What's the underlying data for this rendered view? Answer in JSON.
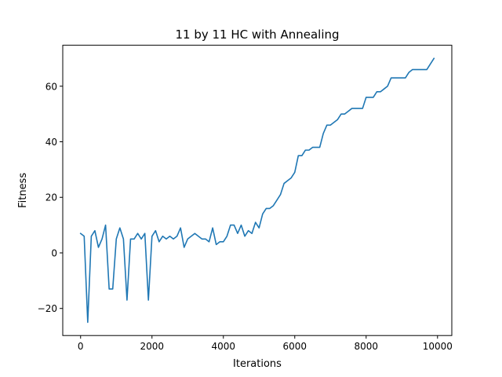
{
  "chart_data": {
    "type": "line",
    "title": "11 by 11 HC with Annealing",
    "xlabel": "Iterations",
    "ylabel": "Fitness",
    "xlim": [
      -500,
      10400
    ],
    "ylim": [
      -29.75,
      74.75
    ],
    "xticks": [
      0,
      2000,
      4000,
      6000,
      8000,
      10000
    ],
    "yticks": [
      -20,
      0,
      20,
      40,
      60
    ],
    "xtick_labels": [
      "0",
      "2000",
      "4000",
      "6000",
      "8000",
      "10000"
    ],
    "ytick_labels": [
      "−20",
      "0",
      "20",
      "40",
      "60"
    ],
    "grid": false,
    "line_color": "#1f77b4",
    "series": [
      {
        "x": [
          0,
          100,
          200,
          300,
          400,
          500,
          600,
          700,
          800,
          900,
          1000,
          1100,
          1200,
          1300,
          1400,
          1500,
          1600,
          1700,
          1800,
          1900,
          2000,
          2100,
          2200,
          2300,
          2400,
          2500,
          2600,
          2700,
          2800,
          2900,
          3000,
          3100,
          3200,
          3300,
          3400,
          3500,
          3600,
          3700,
          3800,
          3900,
          4000,
          4100,
          4200,
          4300,
          4400,
          4500,
          4600,
          4700,
          4800,
          4900,
          5000,
          5100,
          5200,
          5300,
          5400,
          5500,
          5600,
          5700,
          5800,
          5900,
          6000,
          6100,
          6200,
          6300,
          6400,
          6500,
          6600,
          6700,
          6800,
          6900,
          7000,
          7100,
          7200,
          7300,
          7400,
          7500,
          7600,
          7700,
          7800,
          7900,
          8000,
          8100,
          8200,
          8300,
          8400,
          8500,
          8600,
          8700,
          8800,
          8900,
          9000,
          9100,
          9200,
          9300,
          9400,
          9500,
          9600,
          9700,
          9800,
          9900
        ],
        "y": [
          7,
          6,
          -25,
          6,
          8,
          2,
          5,
          10,
          -13,
          -13,
          5,
          9,
          5,
          -17,
          5,
          5,
          7,
          5,
          7,
          -17,
          6,
          8,
          4,
          6,
          5,
          6,
          5,
          6,
          9,
          2,
          5,
          6,
          7,
          6,
          5,
          5,
          4,
          9,
          3,
          4,
          4,
          6,
          10,
          10,
          7,
          10,
          6,
          8,
          7,
          11,
          9,
          14,
          16,
          16,
          17,
          19,
          21,
          25,
          26,
          27,
          29,
          35,
          35,
          37,
          37,
          38,
          38,
          38,
          43,
          46,
          46,
          47,
          48,
          50,
          50,
          51,
          52,
          52,
          52,
          52,
          56,
          56,
          56,
          58,
          58,
          59,
          60,
          63,
          63,
          63,
          63,
          63,
          65,
          66,
          66,
          66,
          66,
          66,
          68,
          70
        ]
      }
    ]
  }
}
